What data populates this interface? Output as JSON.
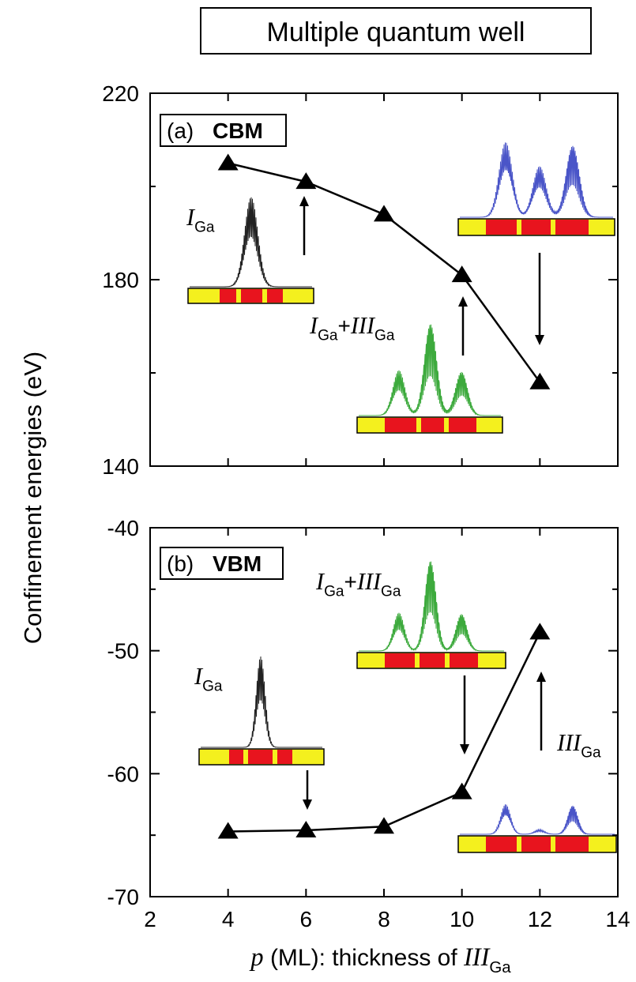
{
  "figure": {
    "title": "Multiple quantum well",
    "ylabel": "Confinement energies (eV)",
    "xlabel": [
      {
        "text": "p",
        "style": "italic"
      },
      {
        "text": " (ML): thickness of ",
        "style": "normal"
      },
      {
        "text": "III",
        "style": "italic"
      },
      {
        "text": "Ga",
        "style": "sub"
      }
    ]
  },
  "chart_data": [
    {
      "type": "line",
      "label": "(a)",
      "band": "CBM",
      "color": "#000000",
      "x": [
        4,
        6,
        8,
        10,
        12
      ],
      "values": [
        205,
        201,
        194,
        181,
        158
      ],
      "xlim": [
        2,
        14
      ],
      "ylim": [
        140,
        220
      ],
      "yticks": [
        140,
        180,
        220
      ],
      "yminor": [
        160,
        200
      ],
      "annotations": [
        [
          {
            "text": "I",
            "style": "italic"
          },
          {
            "text": "Ga",
            "style": "sub"
          }
        ],
        [
          {
            "text": "I",
            "style": "italic"
          },
          {
            "text": "Ga",
            "style": "sub"
          },
          {
            "text": "+",
            "style": "normal"
          },
          {
            "text": "III",
            "style": "italic"
          },
          {
            "text": "Ga",
            "style": "sub"
          }
        ]
      ]
    },
    {
      "type": "line",
      "label": "(b)",
      "band": "VBM",
      "color": "#000000",
      "x": [
        4,
        6,
        8,
        10,
        12
      ],
      "values": [
        -64.7,
        -64.6,
        -64.3,
        -61.5,
        -48.5
      ],
      "xlim": [
        2,
        14
      ],
      "xticks": [
        2,
        4,
        6,
        8,
        10,
        12,
        14
      ],
      "ylim": [
        -70,
        -40
      ],
      "yticks": [
        -70,
        -60,
        -50,
        -40
      ],
      "yminor": [
        -65,
        -55,
        -45
      ],
      "annotations": [
        [
          {
            "text": "I",
            "style": "italic"
          },
          {
            "text": "Ga",
            "style": "sub"
          }
        ],
        [
          {
            "text": "I",
            "style": "italic"
          },
          {
            "text": "Ga",
            "style": "sub"
          },
          {
            "text": "+",
            "style": "normal"
          },
          {
            "text": "III",
            "style": "italic"
          },
          {
            "text": "Ga",
            "style": "sub"
          }
        ],
        [
          {
            "text": "III",
            "style": "italic"
          },
          {
            "text": "Ga",
            "style": "sub"
          }
        ]
      ]
    }
  ]
}
